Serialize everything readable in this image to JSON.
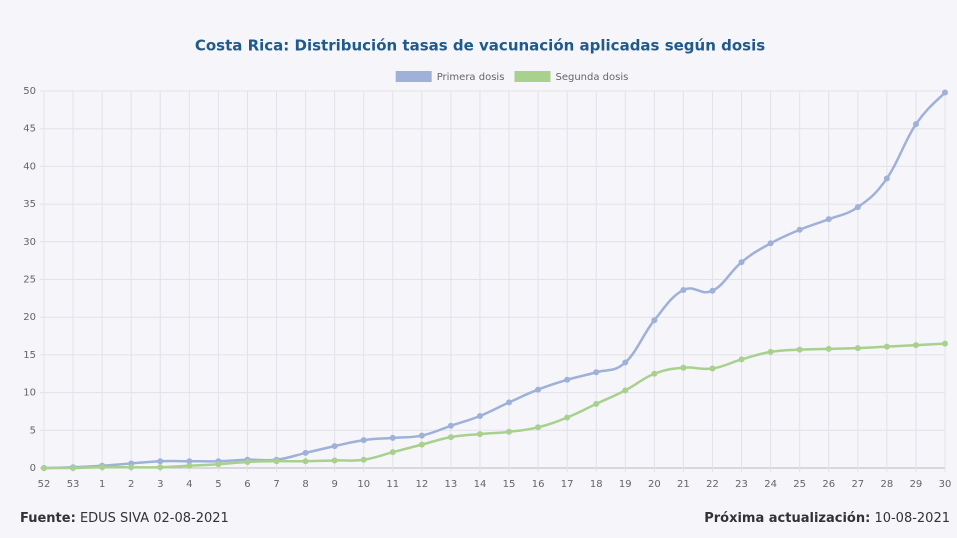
{
  "chart_data": {
    "type": "line",
    "title": "Costa Rica: Distribución tasas de vacunación aplicadas según dosis",
    "categories": [
      "52",
      "53",
      "1",
      "2",
      "3",
      "4",
      "5",
      "6",
      "7",
      "8",
      "9",
      "10",
      "11",
      "12",
      "13",
      "14",
      "15",
      "16",
      "17",
      "18",
      "19",
      "20",
      "21",
      "22",
      "23",
      "24",
      "25",
      "26",
      "27",
      "28",
      "29",
      "30"
    ],
    "series": [
      {
        "name": "Primera dosis",
        "color": "#9fb1d9",
        "values": [
          0,
          0.1,
          0.3,
          0.6,
          0.9,
          0.9,
          0.9,
          1.1,
          1.1,
          2.0,
          2.9,
          3.7,
          4.0,
          4.3,
          5.6,
          6.9,
          8.7,
          10.4,
          11.7,
          12.7,
          14.0,
          19.6,
          23.6,
          23.5,
          27.3,
          29.8,
          31.6,
          33.0,
          34.6,
          38.4,
          45.6,
          49.8
        ]
      },
      {
        "name": "Segunda dosis",
        "color": "#a9d18e",
        "values": [
          0,
          0,
          0.1,
          0.1,
          0.1,
          0.3,
          0.5,
          0.8,
          0.9,
          0.9,
          1.0,
          1.1,
          2.1,
          3.1,
          4.1,
          4.5,
          4.8,
          5.4,
          6.7,
          8.5,
          10.3,
          12.5,
          13.3,
          13.2,
          14.4,
          15.4,
          15.7,
          15.8,
          15.9,
          16.1,
          16.3,
          16.5
        ]
      }
    ],
    "ylim": [
      0,
      50
    ],
    "yticks": [
      0,
      5,
      10,
      15,
      20,
      25,
      30,
      35,
      40,
      45,
      50
    ],
    "grid": true,
    "legend": "top",
    "footer": {
      "source_label": "Fuente:",
      "source": "EDUS SIVA 02-08-2021",
      "update_label": "Próxima actualización:",
      "update": "10-08-2021"
    }
  }
}
